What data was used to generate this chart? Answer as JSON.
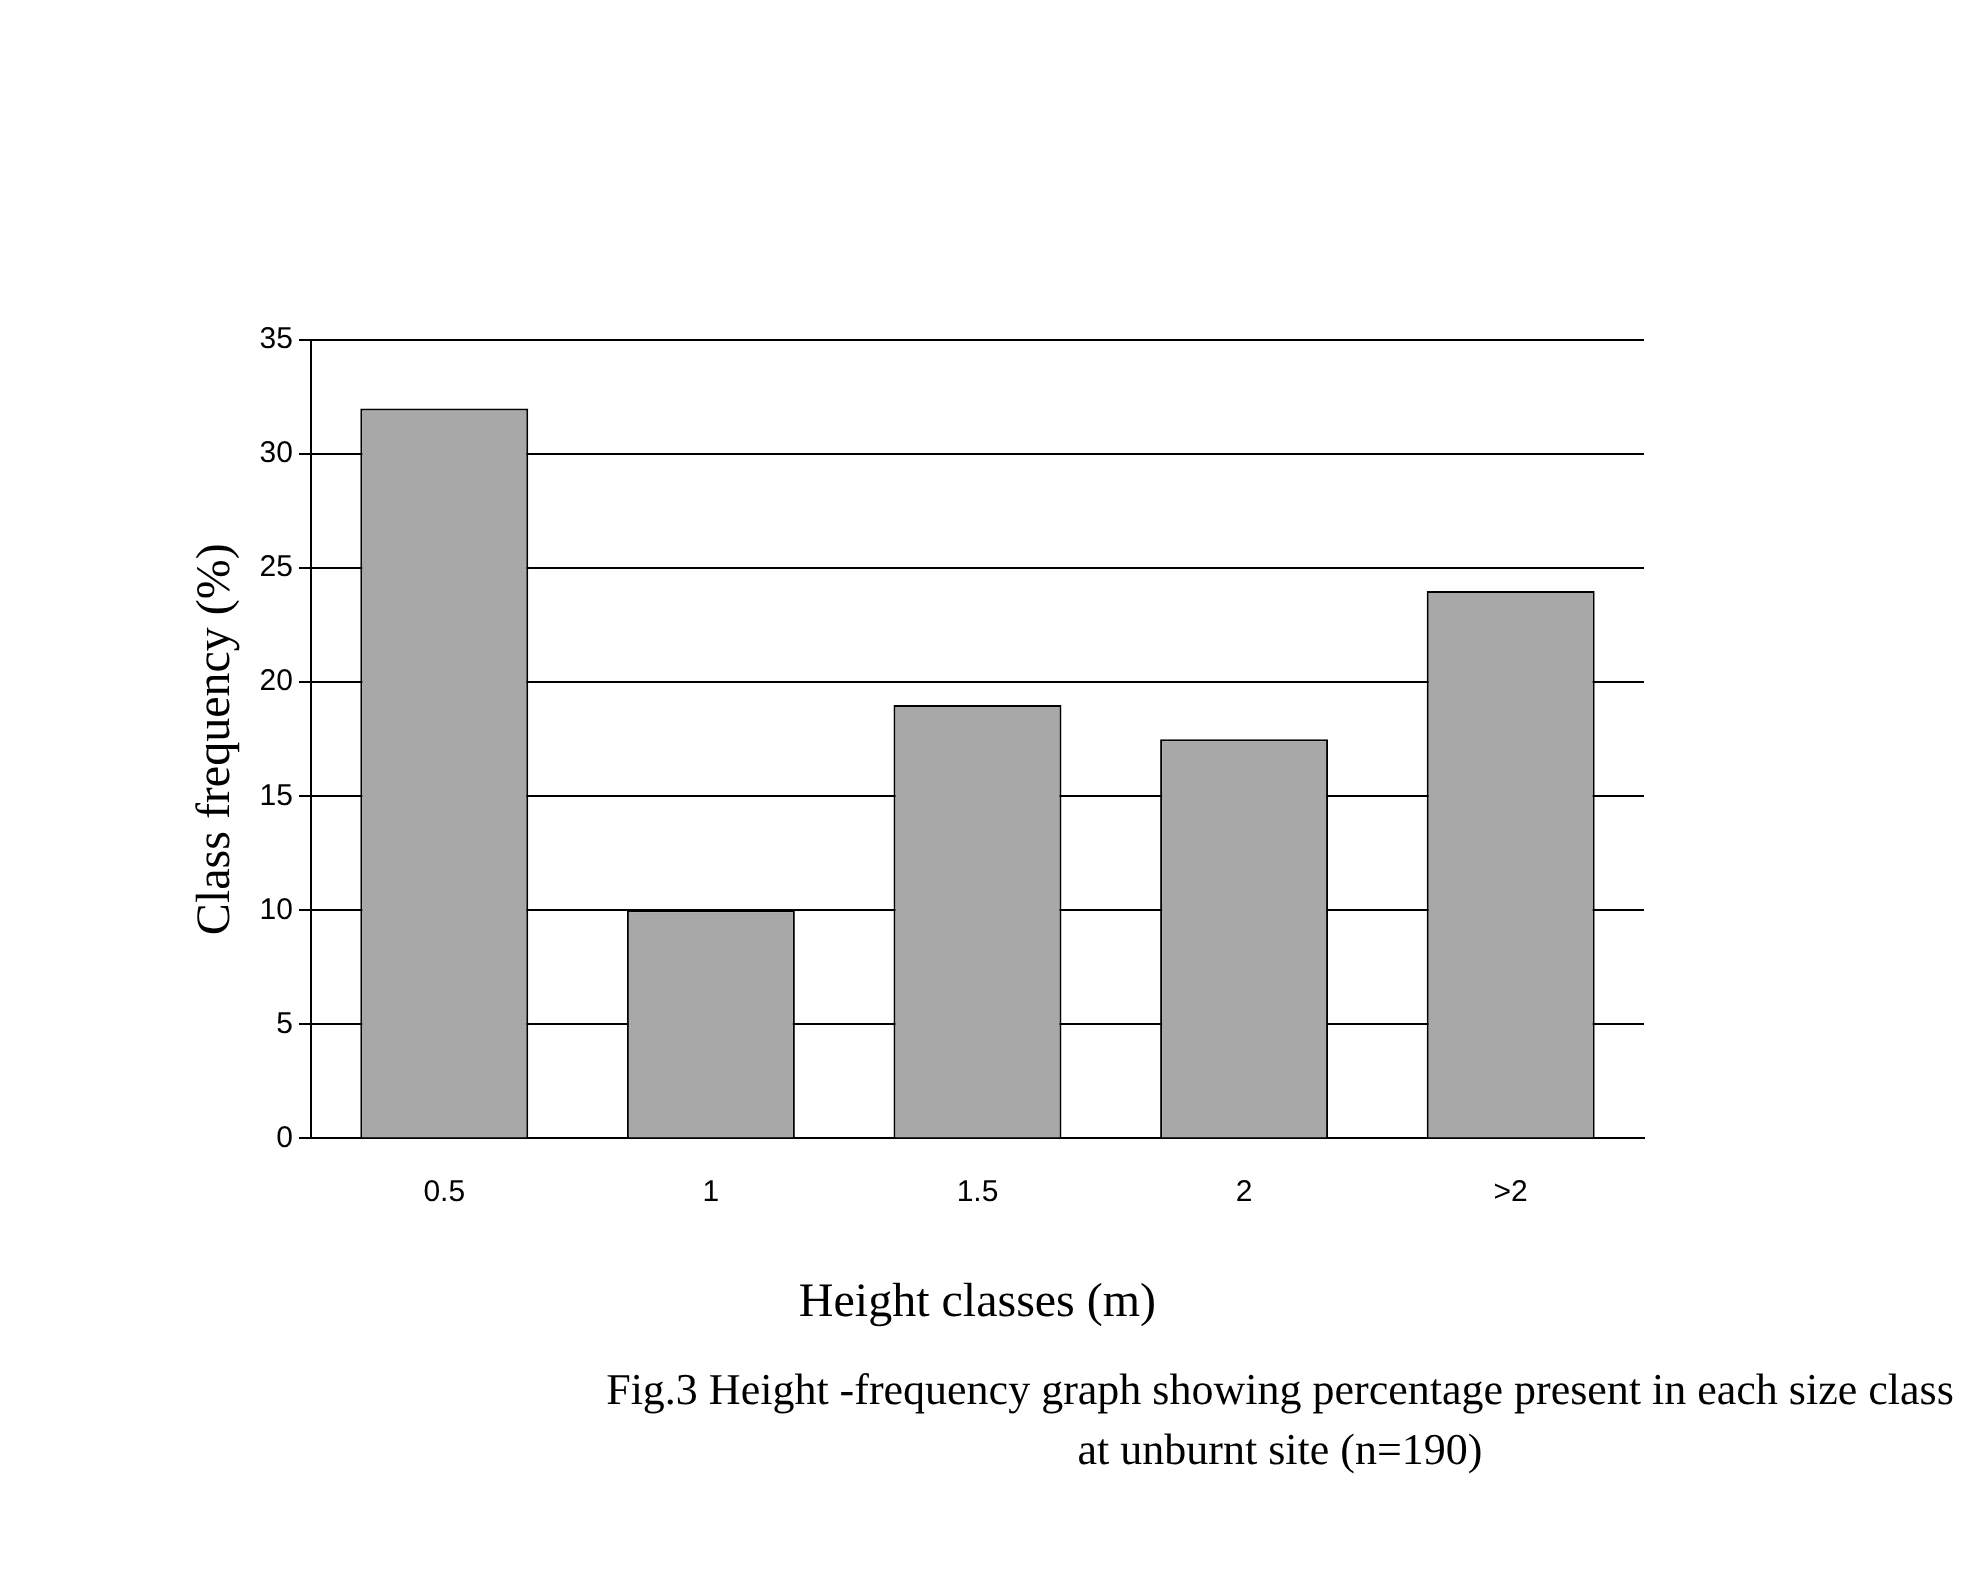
{
  "chart_data": {
    "type": "bar",
    "xlabel": "Height classes (m)",
    "ylabel": "Class frequency (%)",
    "categories": [
      "0.5",
      "1",
      "1.5",
      "2",
      ">2"
    ],
    "values": [
      32,
      10,
      19,
      17.5,
      24
    ],
    "color": "#a8a8a8",
    "ylim": [
      0,
      35
    ],
    "yticks": [
      0,
      5,
      10,
      15,
      20,
      25,
      30,
      35
    ],
    "grid": "y",
    "annotations": [
      "Fig.3 Height -frequency graph showing percentage present in each size class at unburnt site (n=190)"
    ]
  }
}
